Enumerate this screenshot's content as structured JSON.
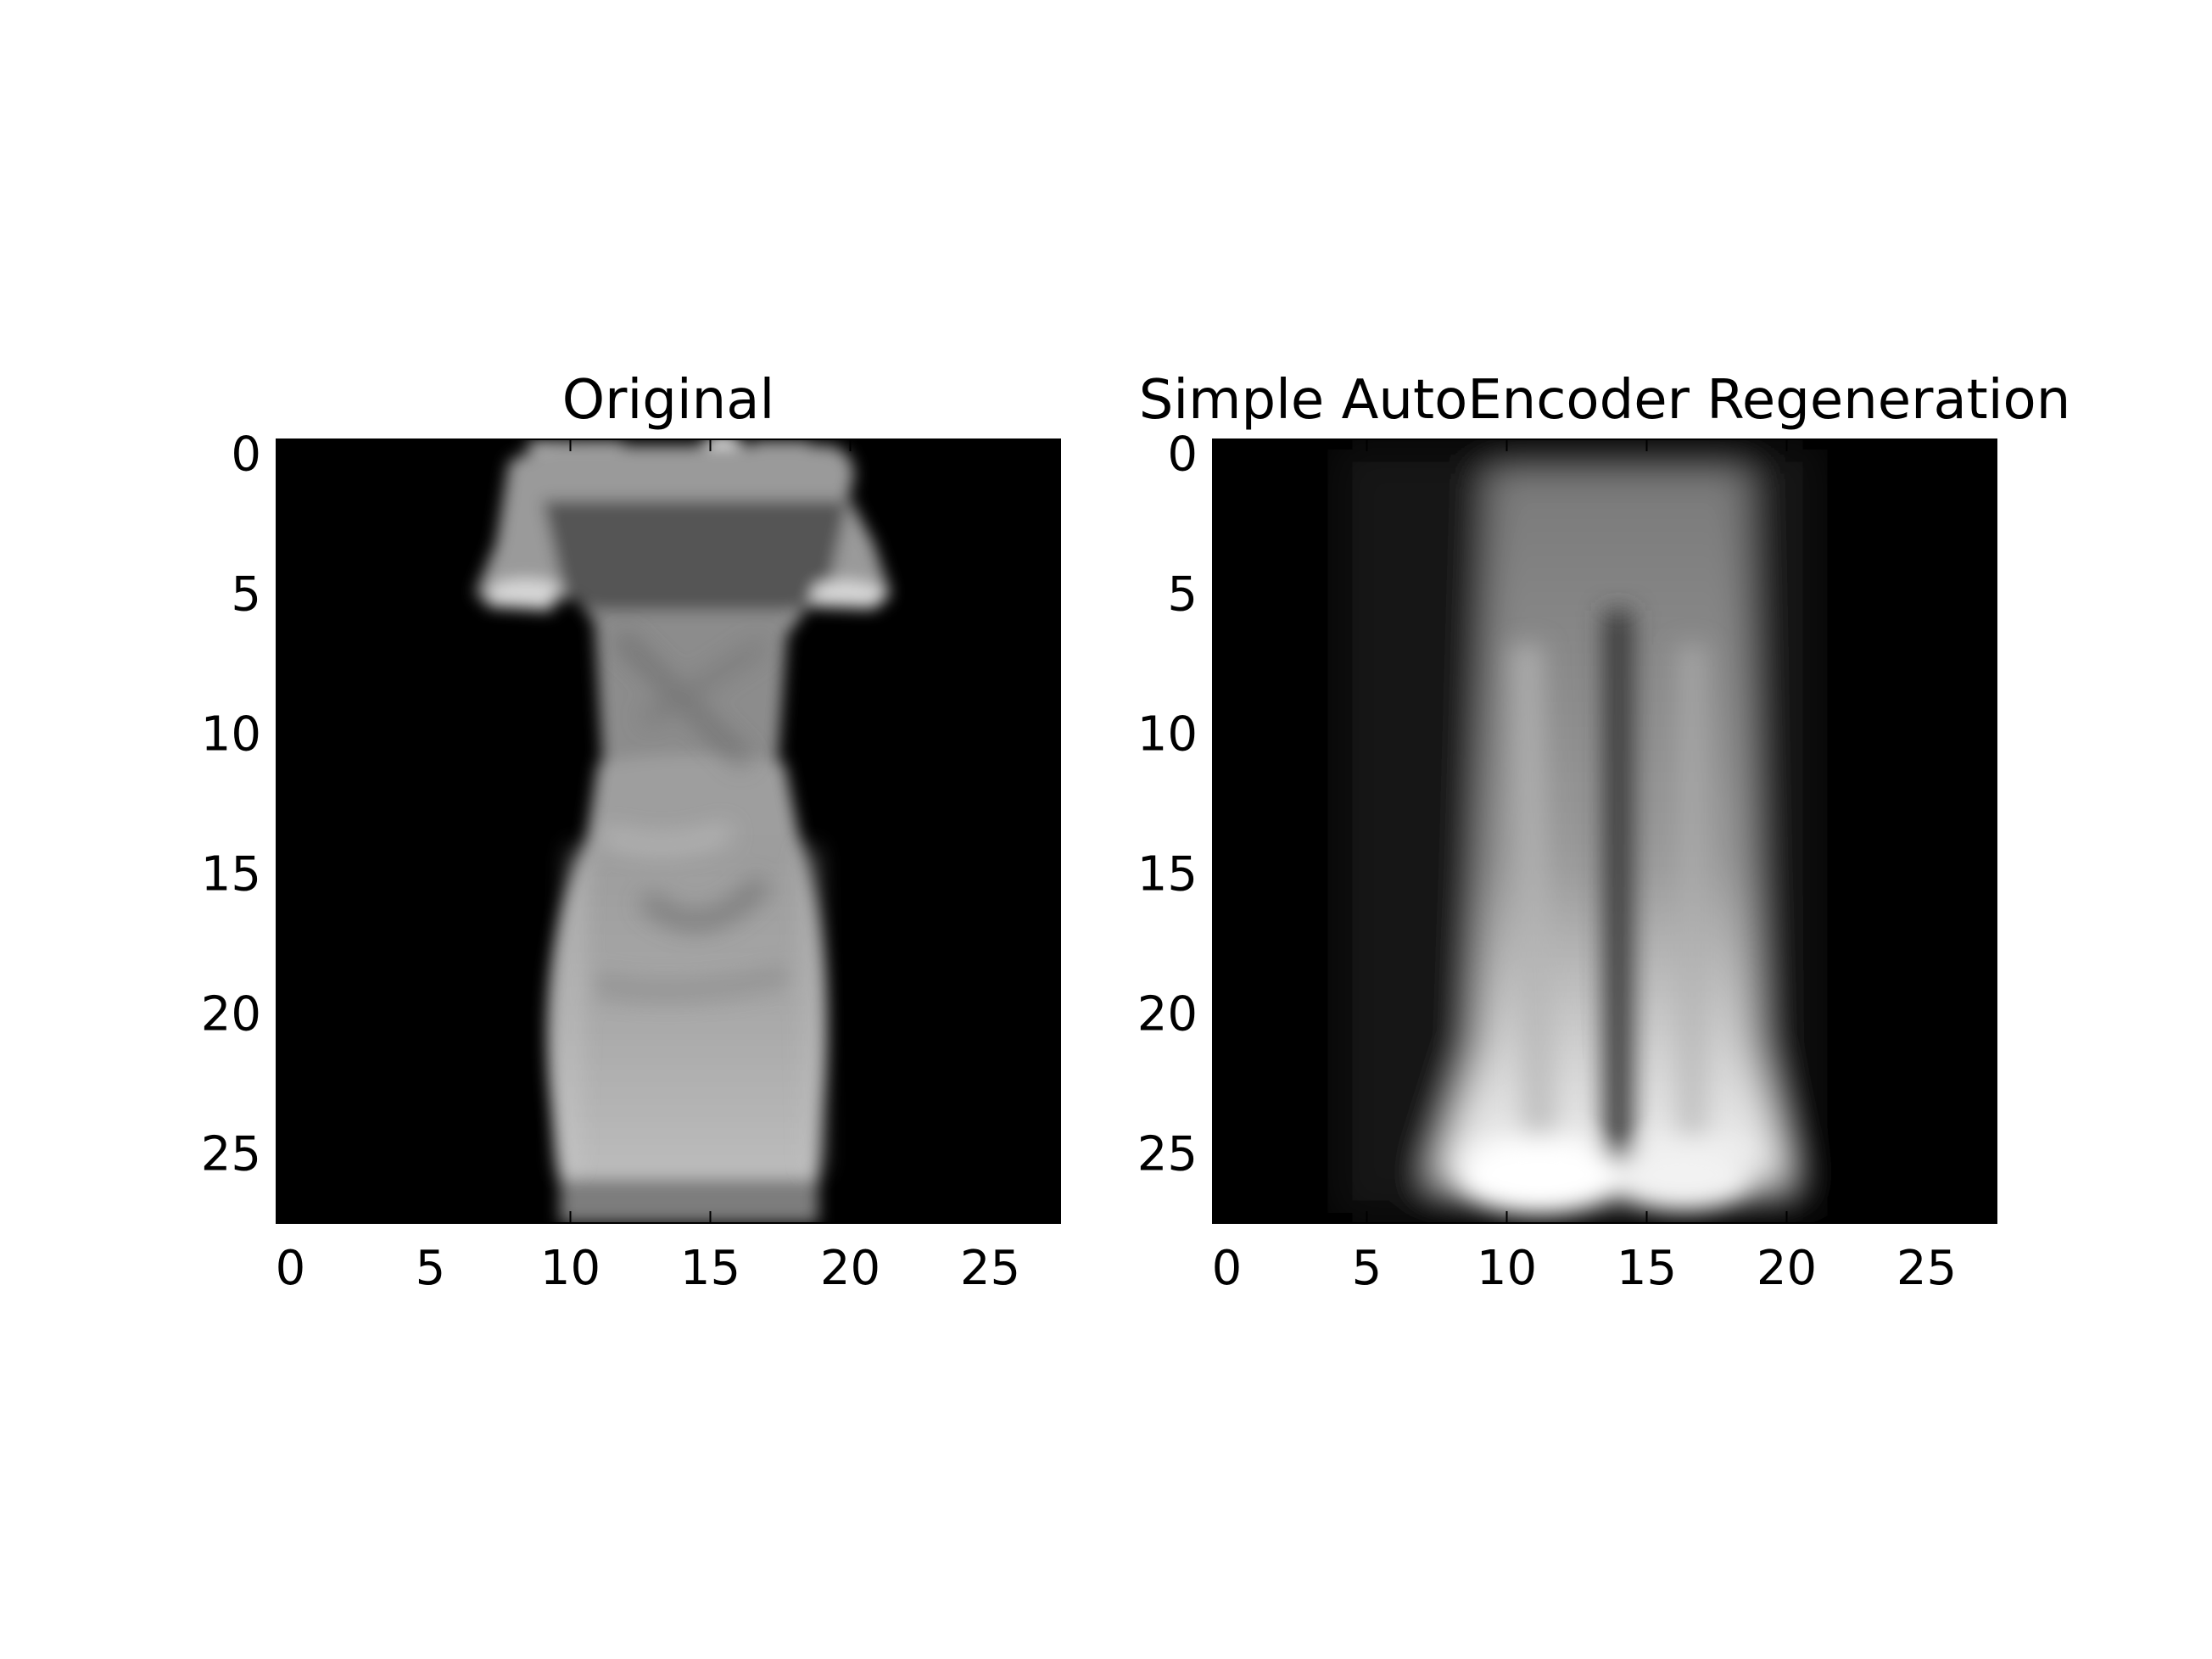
{
  "chart_data": [
    {
      "type": "heatmap",
      "title": "Original",
      "xlabel": "",
      "ylabel": "",
      "xlim": [
        -0.5,
        27.5
      ],
      "ylim": [
        27.5,
        -0.5
      ],
      "xticks": [
        0,
        5,
        10,
        15,
        20,
        25
      ],
      "yticks": [
        0,
        5,
        10,
        15,
        20,
        25
      ],
      "xtick_labels": [
        "0",
        "5",
        "10",
        "15",
        "20",
        "25"
      ],
      "ytick_labels": [
        "0",
        "5",
        "10",
        "15",
        "20",
        "25"
      ],
      "colormap": "gray",
      "background": "#000000",
      "image_rows": 28,
      "image_cols": 28,
      "image_description": "dress"
    },
    {
      "type": "heatmap",
      "title": "Simple AutoEncoder Regeneration",
      "xlabel": "",
      "ylabel": "",
      "xlim": [
        -0.5,
        27.5
      ],
      "ylim": [
        27.5,
        -0.5
      ],
      "xticks": [
        0,
        5,
        10,
        15,
        20,
        25
      ],
      "yticks": [
        0,
        5,
        10,
        15,
        20,
        25
      ],
      "xtick_labels": [
        "0",
        "5",
        "10",
        "15",
        "20",
        "25"
      ],
      "ytick_labels": [
        "0",
        "5",
        "10",
        "15",
        "20",
        "25"
      ],
      "colormap": "gray",
      "background": "#000000",
      "image_rows": 28,
      "image_cols": 28,
      "image_description": "trousers"
    }
  ]
}
